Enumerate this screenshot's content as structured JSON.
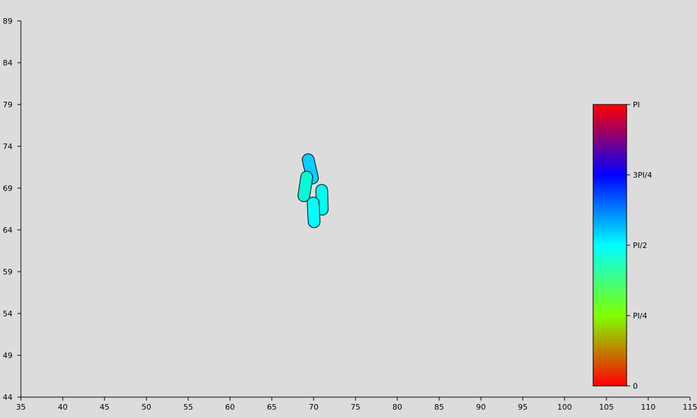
{
  "chart_data": {
    "type": "scatter",
    "title": "",
    "xlabel": "",
    "ylabel": "",
    "xlim": [
      35,
      115
    ],
    "ylim": [
      44,
      89
    ],
    "x_ticks": [
      35,
      40,
      45,
      50,
      55,
      60,
      65,
      70,
      75,
      80,
      85,
      90,
      95,
      100,
      105,
      110,
      115
    ],
    "y_ticks": [
      44,
      49,
      54,
      59,
      64,
      69,
      74,
      79,
      84,
      89
    ],
    "grid": false,
    "series": [
      {
        "marker": "capsule",
        "points": [
          {
            "x": 69.6,
            "y": 71.3,
            "angle_rad": 1.8,
            "color": "#00d0ff"
          },
          {
            "x": 69.0,
            "y": 69.2,
            "angle_rad": 1.42,
            "color": "#00ffd6"
          },
          {
            "x": 71.0,
            "y": 67.6,
            "angle_rad": 1.6,
            "color": "#00fff0"
          },
          {
            "x": 70.0,
            "y": 66.1,
            "angle_rad": 1.62,
            "color": "#00ffff"
          }
        ]
      }
    ],
    "colorbar": {
      "label_min": "0",
      "label_max": "PI",
      "tick_labels": [
        "0",
        "PI/4",
        "PI/2",
        "3PI/4",
        "PI"
      ],
      "placement": "right",
      "colors": [
        "#ff0000",
        "#80ff00",
        "#00ffff",
        "#0000ff",
        "#ff0000"
      ]
    }
  }
}
